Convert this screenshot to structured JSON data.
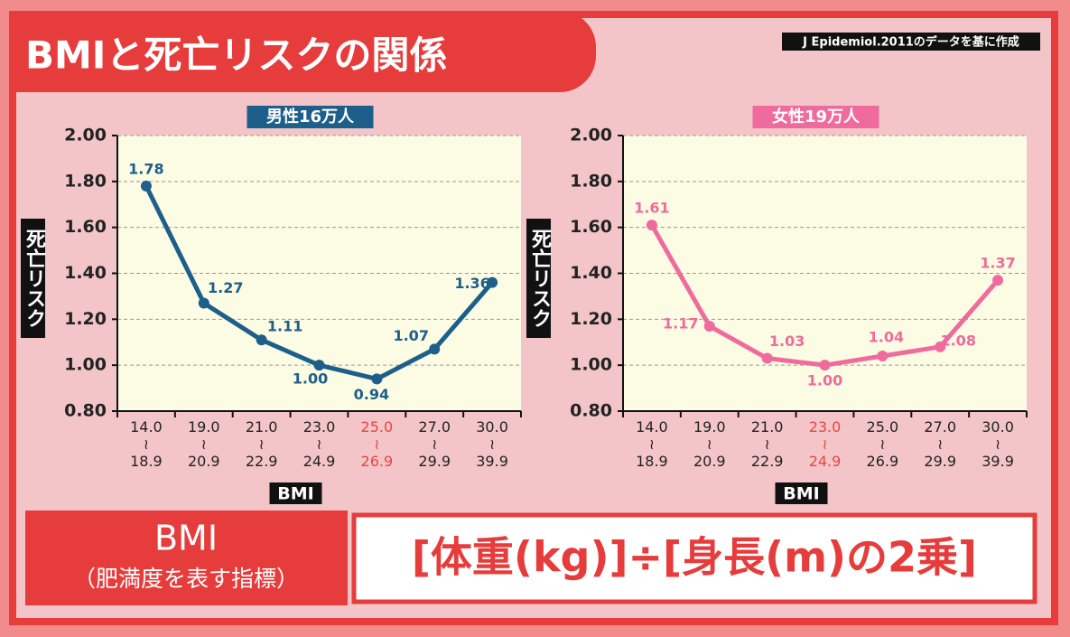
{
  "header": {
    "title": "BMIと死亡リスクの関係",
    "source": "J Epidemiol.2011のデータを基に作成"
  },
  "chart_data": [
    {
      "type": "line",
      "title": "男性16万人",
      "y_label": "死亡リスク",
      "x_label": "BMI",
      "categories": [
        "14.0\n≀\n18.9",
        "19.0\n≀\n20.9",
        "21.0\n≀\n22.9",
        "23.0\n≀\n24.9",
        "25.0\n≀\n26.9",
        "27.0\n≀\n29.9",
        "30.0\n≀\n39.9"
      ],
      "values": [
        1.78,
        1.27,
        1.11,
        1.0,
        0.94,
        1.07,
        1.36
      ],
      "value_labels": [
        "1.78",
        "1.27",
        "1.11",
        "1.00",
        "0.94",
        "1.07",
        "1.36"
      ],
      "color": "#1d5f8a",
      "title_color": "#1d5f8a",
      "highlight_category": 4,
      "highlight_color": "#e8463f",
      "ylim": [
        0.8,
        2.0
      ],
      "yticks": [
        {
          "value": 0.8,
          "label": "0.80"
        },
        {
          "value": 1.0,
          "label": "1.00"
        },
        {
          "value": 1.2,
          "label": "1.20"
        },
        {
          "value": 1.4,
          "label": "1.40"
        },
        {
          "value": 1.6,
          "label": "1.60"
        },
        {
          "value": 1.8,
          "label": "1.80"
        },
        {
          "value": 2.0,
          "label": "2.00"
        }
      ],
      "grid": true
    },
    {
      "type": "line",
      "title": "女性19万人",
      "y_label": "死亡リスク",
      "x_label": "BMI",
      "categories": [
        "14.0\n≀\n18.9",
        "19.0\n≀\n20.9",
        "21.0\n≀\n22.9",
        "23.0\n≀\n24.9",
        "25.0\n≀\n26.9",
        "27.0\n≀\n29.9",
        "30.0\n≀\n39.9"
      ],
      "values": [
        1.61,
        1.17,
        1.03,
        1.0,
        1.04,
        1.08,
        1.37
      ],
      "value_labels": [
        "1.61",
        "1.17",
        "1.03",
        "1.00",
        "1.04",
        "1.08",
        "1.37"
      ],
      "color": "#ef6b9d",
      "title_color": "#ef6b9d",
      "highlight_category": 3,
      "highlight_color": "#e8463f",
      "ylim": [
        0.8,
        2.0
      ],
      "yticks": [
        {
          "value": 0.8,
          "label": "0.80"
        },
        {
          "value": 1.0,
          "label": "1.00"
        },
        {
          "value": 1.2,
          "label": "1.20"
        },
        {
          "value": 1.4,
          "label": "1.40"
        },
        {
          "value": 1.6,
          "label": "1.60"
        },
        {
          "value": 1.8,
          "label": "1.80"
        },
        {
          "value": 2.0,
          "label": "2.00"
        }
      ],
      "grid": true
    }
  ],
  "footer": {
    "term": "BMI",
    "term_note": "（肥満度を表す指標）",
    "formula": "[体重(kg)]÷[身長(m)の2乗]"
  }
}
